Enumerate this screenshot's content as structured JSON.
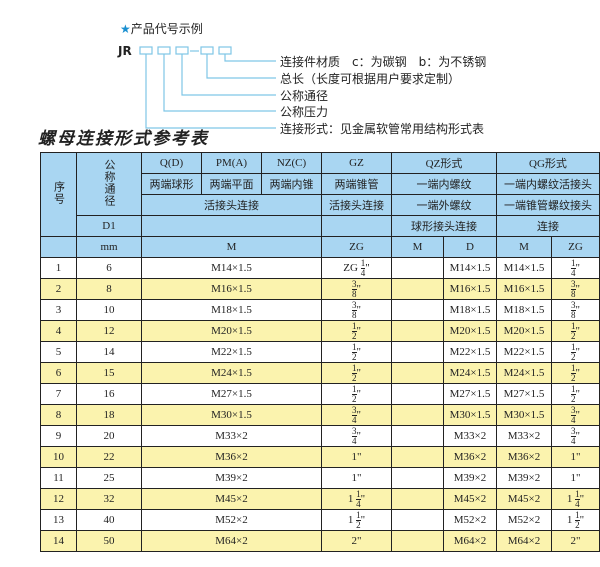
{
  "code": {
    "title": "产品代号示例",
    "star_icon": "star-icon",
    "prefix": "JR",
    "legend": [
      "连接件材质　c：为碳钢　b：为不锈钢",
      "总长（长度可根据用户要求定制）",
      "公称通径",
      "公称压力",
      "连接形式：见金属软管常用结构形式表"
    ],
    "line_color": "#7fc6e6"
  },
  "table_title": "螺母连接形式参考表",
  "header": {
    "seq": "序号",
    "dn": "公称通径",
    "d1": "D1",
    "mm": "mm",
    "qd": "Q(D)",
    "pm": "PM(A)",
    "nz": "NZ(C)",
    "gz": "GZ",
    "qz": "QZ形式",
    "qg": "QG形式",
    "qd2": "两端球形",
    "pm2": "两端平面",
    "nz2": "两端内锥",
    "gz2": "两端锥管",
    "qz2": "一端内螺纹",
    "qg2": "一端内螺纹活接头",
    "qdpmnz3": "活接头连接",
    "gz3": "活接头连接",
    "qz3": "一端外螺纹",
    "qg3": "一端锥管螺纹接头",
    "qz4": "球形接头连接",
    "qg4": "连接",
    "m": "M",
    "zg": "ZG",
    "qzm": "M",
    "qzd": "D",
    "qgm": "M",
    "qgzg": "ZG"
  },
  "colors": {
    "header": "#a9d6f2",
    "row_alt": "#fbf3ae",
    "row": "#ffffff"
  },
  "rows": [
    {
      "no": "1",
      "dn": "6",
      "m": "M14×1.5",
      "gz": {
        "prefix": "ZG",
        "whole": "",
        "num": "1",
        "den": "4"
      },
      "qzm": "",
      "qzd": "M14×1.5",
      "qgm": "M14×1.5",
      "qgzg": {
        "whole": "",
        "num": "1",
        "den": "4"
      }
    },
    {
      "no": "2",
      "dn": "8",
      "m": "M16×1.5",
      "gz": {
        "whole": "",
        "num": "3",
        "den": "8"
      },
      "qzm": "",
      "qzd": "M16×1.5",
      "qgm": "M16×1.5",
      "qgzg": {
        "whole": "",
        "num": "3",
        "den": "8"
      }
    },
    {
      "no": "3",
      "dn": "10",
      "m": "M18×1.5",
      "gz": {
        "whole": "",
        "num": "3",
        "den": "8"
      },
      "qzm": "",
      "qzd": "M18×1.5",
      "qgm": "M18×1.5",
      "qgzg": {
        "whole": "",
        "num": "3",
        "den": "8"
      }
    },
    {
      "no": "4",
      "dn": "12",
      "m": "M20×1.5",
      "gz": {
        "whole": "",
        "num": "1",
        "den": "2"
      },
      "qzm": "",
      "qzd": "M20×1.5",
      "qgm": "M20×1.5",
      "qgzg": {
        "whole": "",
        "num": "1",
        "den": "2"
      }
    },
    {
      "no": "5",
      "dn": "14",
      "m": "M22×1.5",
      "gz": {
        "whole": "",
        "num": "1",
        "den": "2"
      },
      "qzm": "",
      "qzd": "M22×1.5",
      "qgm": "M22×1.5",
      "qgzg": {
        "whole": "",
        "num": "1",
        "den": "2"
      }
    },
    {
      "no": "6",
      "dn": "15",
      "m": "M24×1.5",
      "gz": {
        "whole": "",
        "num": "1",
        "den": "2"
      },
      "qzm": "",
      "qzd": "M24×1.5",
      "qgm": "M24×1.5",
      "qgzg": {
        "whole": "",
        "num": "1",
        "den": "2"
      }
    },
    {
      "no": "7",
      "dn": "16",
      "m": "M27×1.5",
      "gz": {
        "whole": "",
        "num": "1",
        "den": "2"
      },
      "qzm": "",
      "qzd": "M27×1.5",
      "qgm": "M27×1.5",
      "qgzg": {
        "whole": "",
        "num": "1",
        "den": "2"
      }
    },
    {
      "no": "8",
      "dn": "18",
      "m": "M30×1.5",
      "gz": {
        "whole": "",
        "num": "3",
        "den": "4"
      },
      "qzm": "",
      "qzd": "M30×1.5",
      "qgm": "M30×1.5",
      "qgzg": {
        "whole": "",
        "num": "3",
        "den": "4"
      }
    },
    {
      "no": "9",
      "dn": "20",
      "m": "M33×2",
      "gz": {
        "whole": "",
        "num": "3",
        "den": "4"
      },
      "qzm": "",
      "qzd": "M33×2",
      "qgm": "M33×2",
      "qgzg": {
        "whole": "",
        "num": "3",
        "den": "4"
      }
    },
    {
      "no": "10",
      "dn": "22",
      "m": "M36×2",
      "gz": {
        "whole": "1",
        "num": "",
        "den": ""
      },
      "qzm": "",
      "qzd": "M36×2",
      "qgm": "M36×2",
      "qgzg": {
        "whole": "1",
        "num": "",
        "den": ""
      }
    },
    {
      "no": "11",
      "dn": "25",
      "m": "M39×2",
      "gz": {
        "whole": "1",
        "num": "",
        "den": ""
      },
      "qzm": "",
      "qzd": "M39×2",
      "qgm": "M39×2",
      "qgzg": {
        "whole": "1",
        "num": "",
        "den": ""
      }
    },
    {
      "no": "12",
      "dn": "32",
      "m": "M45×2",
      "gz": {
        "whole": "1",
        "num": "1",
        "den": "4"
      },
      "qzm": "",
      "qzd": "M45×2",
      "qgm": "M45×2",
      "qgzg": {
        "whole": "1",
        "num": "1",
        "den": "4"
      }
    },
    {
      "no": "13",
      "dn": "40",
      "m": "M52×2",
      "gz": {
        "whole": "1",
        "num": "1",
        "den": "2"
      },
      "qzm": "",
      "qzd": "M52×2",
      "qgm": "M52×2",
      "qgzg": {
        "whole": "1",
        "num": "1",
        "den": "2"
      }
    },
    {
      "no": "14",
      "dn": "50",
      "m": "M64×2",
      "gz": {
        "whole": "2",
        "num": "",
        "den": ""
      },
      "qzm": "",
      "qzd": "M64×2",
      "qgm": "M64×2",
      "qgzg": {
        "whole": "2",
        "num": "",
        "den": ""
      }
    }
  ]
}
